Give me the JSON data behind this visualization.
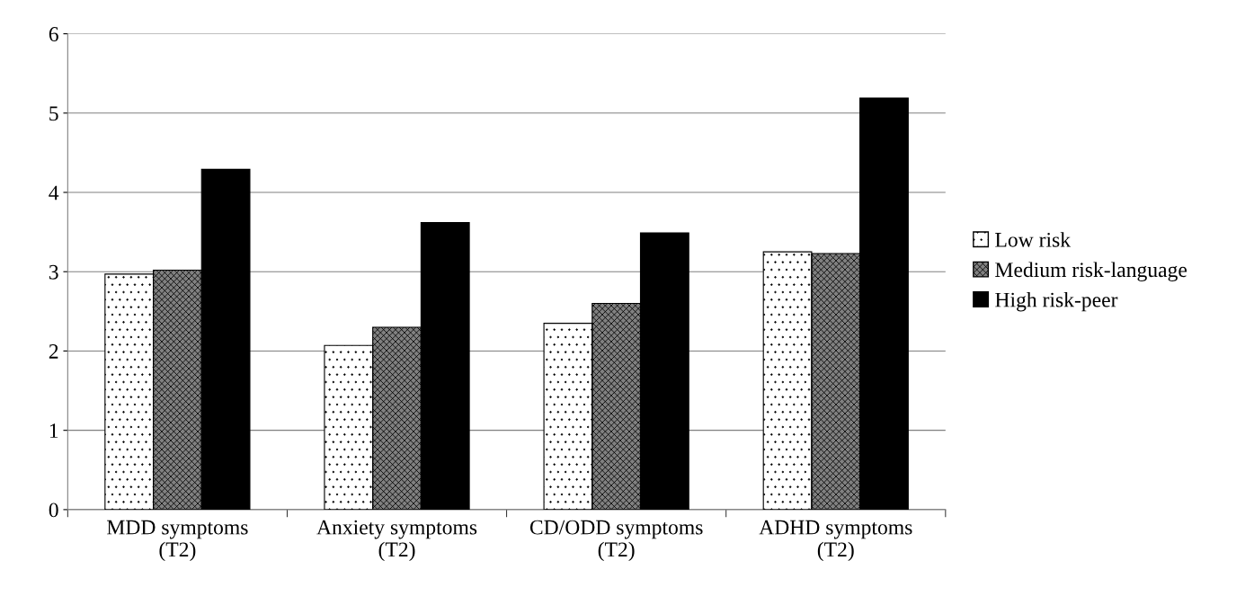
{
  "chart_data": {
    "type": "bar",
    "categories": [
      "MDD symptoms\n(T2)",
      "Anxiety symptoms\n(T2)",
      "CD/ODD symptoms\n(T2)",
      "ADHD symptoms\n(T2)"
    ],
    "series": [
      {
        "name": "Low risk",
        "color": "#ffffff",
        "values": [
          2.97,
          2.07,
          2.35,
          3.25
        ]
      },
      {
        "name": "Medium risk-language",
        "color": "#808080",
        "values": [
          3.02,
          2.3,
          2.6,
          3.23
        ]
      },
      {
        "name": "High risk-peer",
        "color": "#000000",
        "values": [
          4.29,
          3.62,
          3.49,
          5.19
        ]
      }
    ],
    "ylim": [
      0,
      6
    ],
    "yticks": [
      0,
      1,
      2,
      3,
      4,
      5,
      6
    ],
    "grid": "y",
    "legend": "right"
  }
}
